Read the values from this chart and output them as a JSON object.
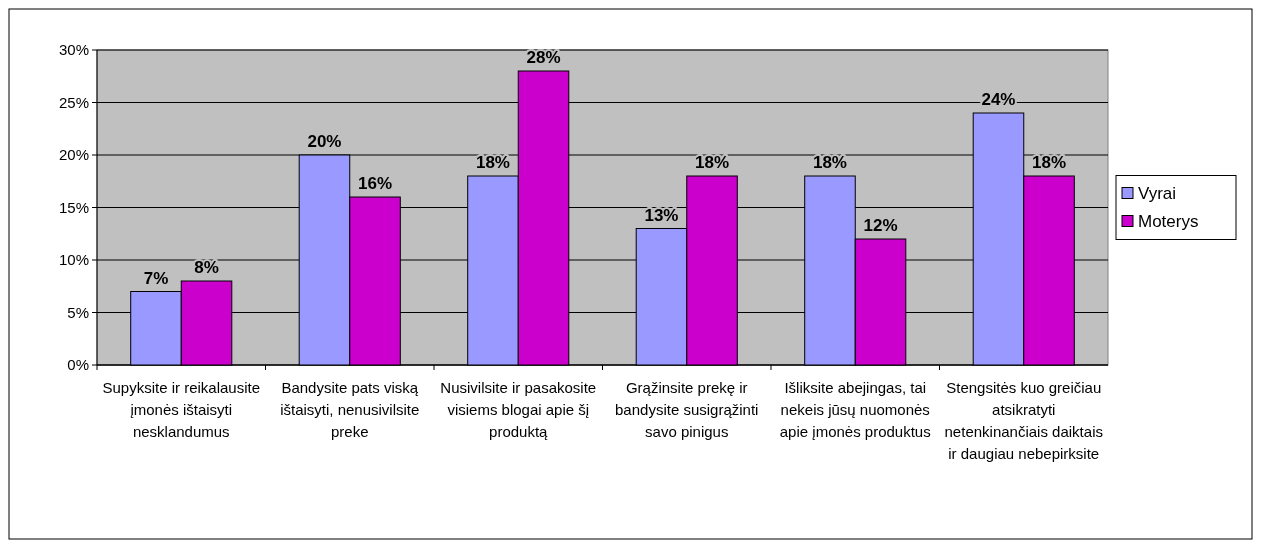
{
  "chart_data": {
    "type": "bar",
    "categories": [
      "Supyksite ir reikalausite įmonės ištaisyti nesklandumus",
      "Bandysite pats viską ištaisyti, nenusivilsite preke",
      "Nusivilsite ir pasakosite visiems blogai apie šį produktą",
      "Grąžinsite prekę ir bandysite susigrąžinti savo pinigus",
      "Išliksite abejingas, tai nekeis jūsų nuomonės apie įmonės produktus",
      "Stengsitės kuo greičiau atsikratyti netenkinančiais daiktais ir daugiau nebepirksite"
    ],
    "series": [
      {
        "name": "Vyrai",
        "color": "#9999ff",
        "values": [
          7,
          20,
          18,
          13,
          18,
          24
        ],
        "value_labels": [
          "7%",
          "20%",
          "18%",
          "13%",
          "18%",
          "24%"
        ]
      },
      {
        "name": "Moterys",
        "color": "#cc00cc",
        "values": [
          8,
          16,
          28,
          18,
          12,
          18
        ],
        "value_labels": [
          "8%",
          "16%",
          "28%",
          "18%",
          "12%",
          "18%"
        ]
      }
    ],
    "ylim": [
      0,
      30
    ],
    "yticks": [
      {
        "value": 0,
        "label": "0%"
      },
      {
        "value": 5,
        "label": "5%"
      },
      {
        "value": 10,
        "label": "10%"
      },
      {
        "value": 15,
        "label": "15%"
      },
      {
        "value": 20,
        "label": "20%"
      },
      {
        "value": 25,
        "label": "25%"
      },
      {
        "value": 30,
        "label": "30%"
      }
    ],
    "grid": "y",
    "legend": "right"
  }
}
